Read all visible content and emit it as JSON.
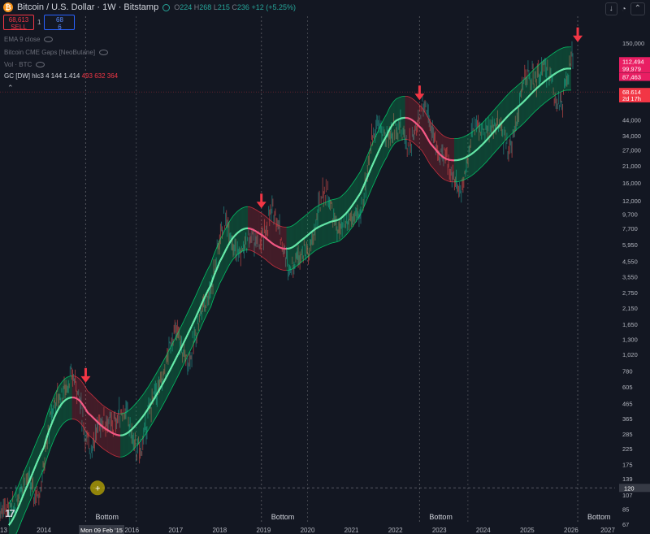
{
  "header": {
    "title": "Bitcoin / U.S. Dollar · 1W · Bitstamp",
    "ohlc": {
      "o_label": "O",
      "o": "224",
      "h_label": "H",
      "h": "268",
      "l_label": "L",
      "l": "215",
      "c_label": "C",
      "c": "236",
      "change": "+12 (+5.25%)"
    }
  },
  "trade": {
    "sell_price": "68,613",
    "sell_label": "SELL",
    "qty": "1",
    "buy_price": "68",
    "buy_label": "6"
  },
  "indicators": [
    {
      "label": "EMA 9 close"
    },
    {
      "label": "Bitcoin CME Gaps [NeoButane]"
    },
    {
      "label": "Vol · BTC"
    }
  ],
  "gc": {
    "label": "GC [DW] hlc3 4 144 1.414",
    "values": "493 632 364"
  },
  "cursor": {
    "date_label": "Mon 09 Feb '15",
    "price_label": "120"
  },
  "colors": {
    "background": "#131722",
    "band_up": "#00e676",
    "band_down": "#f23645",
    "arrow": "#f23645",
    "candle_up": "#26a69a",
    "candle_down": "#ef5350",
    "price_tag": "#e91e63"
  },
  "chart_data": {
    "type": "line",
    "title": "Bitcoin / U.S. Dollar · 1W · Bitstamp",
    "y_scale": "log",
    "ylim": [
      67,
      300000
    ],
    "xlim": [
      2013.0,
      2027.0
    ],
    "x_tick_labels": [
      "2013",
      "2014",
      "2016",
      "2017",
      "2018",
      "2019",
      "2020",
      "2021",
      "2022",
      "2023",
      "2024",
      "2025",
      "2026",
      "2027"
    ],
    "x_ticks": [
      2013.0,
      2014.0,
      2016.0,
      2017.0,
      2018.0,
      2019.0,
      2020.0,
      2021.0,
      2022.0,
      2023.0,
      2024.0,
      2025.0,
      2026.0,
      2027.0
    ],
    "y_tick_labels": [
      "150,000",
      "44,000",
      "34,000",
      "27,000",
      "21,000",
      "16,000",
      "12,000",
      "9,700",
      "7,700",
      "5,950",
      "4,550",
      "3,550",
      "2,750",
      "2,150",
      "1,650",
      "1,300",
      "1,020",
      "780",
      "605",
      "465",
      "365",
      "285",
      "225",
      "175",
      "139",
      "107",
      "85",
      "67"
    ],
    "price_tags": [
      {
        "label": "112,494",
        "value": 112494
      },
      {
        "label": "99,979",
        "value": 99979
      },
      {
        "label": "87,463",
        "value": 87463
      },
      {
        "label": "68,614",
        "value": 68614
      },
      {
        "label": "2d 17h",
        "value": 62000
      }
    ],
    "series": [
      {
        "name": "GC [DW] hlc3 4 144 1.414",
        "x": [
          2013.2,
          2013.6,
          2014.0,
          2014.2,
          2014.4,
          2014.6,
          2014.8,
          2015.0,
          2015.4,
          2015.8,
          2016.2,
          2016.6,
          2017.0,
          2017.4,
          2017.8,
          2018.0,
          2018.3,
          2018.6,
          2018.9,
          2019.3,
          2019.6,
          2019.9,
          2020.2,
          2020.5,
          2020.8,
          2021.2,
          2021.5,
          2021.8,
          2022.0,
          2022.3,
          2022.6,
          2022.8,
          2023.1,
          2023.4,
          2023.7,
          2024.0,
          2024.3,
          2024.6,
          2024.9,
          2025.2,
          2025.5,
          2025.8,
          2026.0
        ],
        "basis": [
          66,
          120,
          230,
          350,
          460,
          510,
          490,
          400,
          310,
          280,
          360,
          560,
          950,
          1700,
          3100,
          4500,
          6600,
          7700,
          7100,
          5800,
          5600,
          6500,
          7700,
          8500,
          9300,
          13500,
          22000,
          34000,
          43000,
          45000,
          38000,
          30000,
          24000,
          23000,
          25000,
          30000,
          38000,
          48000,
          58000,
          72000,
          86000,
          98000,
          100000
        ],
        "up_color": "#00e676",
        "down_color": "#f23645"
      }
    ],
    "signals": [
      {
        "label": "Bottom",
        "x": 2014.95
      },
      {
        "label": "Bottom",
        "x": 2018.95
      },
      {
        "label": "Bottom",
        "x": 2022.55
      },
      {
        "label": "Bottom",
        "x": 2026.15
      }
    ],
    "top_arrows": [
      2014.95,
      2018.95,
      2022.55,
      2026.15
    ],
    "grid": false,
    "band_multiplier": 1.414
  }
}
